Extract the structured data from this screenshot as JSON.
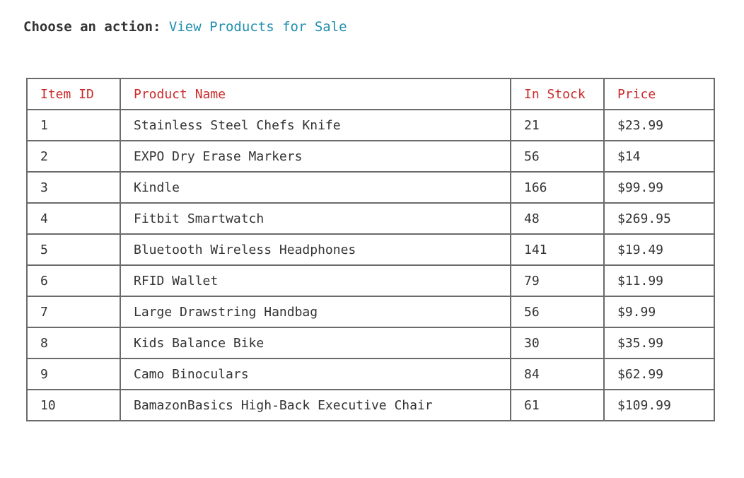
{
  "prompt": {
    "label": "Choose an action:",
    "answer": "View Products for Sale"
  },
  "table": {
    "headers": [
      "Item ID",
      "Product Name",
      "In Stock",
      "Price"
    ],
    "rows": [
      [
        "1",
        "Stainless Steel Chefs Knife",
        "21",
        "$23.99"
      ],
      [
        "2",
        "EXPO Dry Erase Markers",
        "56",
        "$14"
      ],
      [
        "3",
        "Kindle",
        "166",
        "$99.99"
      ],
      [
        "4",
        "Fitbit Smartwatch",
        "48",
        "$269.95"
      ],
      [
        "5",
        "Bluetooth Wireless Headphones",
        "141",
        "$19.49"
      ],
      [
        "6",
        "RFID Wallet",
        "79",
        "$11.99"
      ],
      [
        "7",
        "Large Drawstring Handbag",
        "56",
        "$9.99"
      ],
      [
        "8",
        "Kids Balance Bike",
        "30",
        "$35.99"
      ],
      [
        "9",
        "Camo Binoculars",
        "84",
        "$62.99"
      ],
      [
        "10",
        "BamazonBasics High-Back Executive Chair",
        "61",
        "$109.99"
      ]
    ]
  },
  "colors": {
    "header_text": "#cc2a2a",
    "answer_text": "#1f8fae",
    "body_text": "#333333",
    "border": "#6b6b6b"
  }
}
